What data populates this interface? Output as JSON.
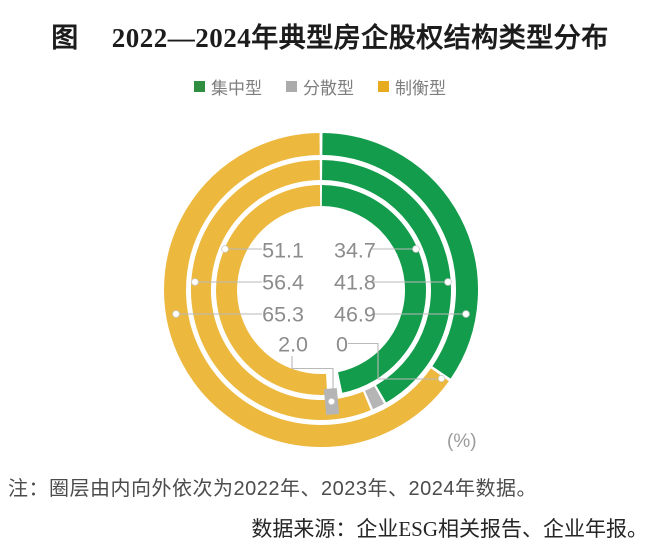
{
  "title": {
    "prefix": "图",
    "text": "2022—2024年典型房企股权结构类型分布"
  },
  "legend": [
    {
      "label": "集中型",
      "color": "#2f8e3f"
    },
    {
      "label": "分散型",
      "color": "#ababab"
    },
    {
      "label": "制衡型",
      "color": "#e6ab1f"
    }
  ],
  "chart_data": {
    "type": "donut",
    "title": "2022—2024年典型房企股权结构类型分布",
    "unit_label": "(%)",
    "legend_position": "top",
    "categories": [
      "集中型",
      "分散型",
      "制衡型"
    ],
    "colors": {
      "集中型": "#149c4d",
      "分散型": "#b5b5b5",
      "制衡型": "#ecb83e"
    },
    "ring_order_note": "rings from inner to outer = 2022, 2023, 2024",
    "rings": [
      {
        "year": "2022",
        "position": "inner",
        "arc_pcts": {
          "集中型": 46.9,
          "分散型": 2.0,
          "制衡型": 51.1
        }
      },
      {
        "year": "2023",
        "position": "middle",
        "arc_pcts": {
          "集中型": 41.8,
          "分散型": 1.8,
          "制衡型": 56.4
        }
      },
      {
        "year": "2024",
        "position": "outer",
        "arc_pcts": {
          "集中型": 34.7,
          "分散型": 0,
          "制衡型": 65.3
        }
      }
    ],
    "label_rows": {
      "left": [
        "51.1",
        "56.4",
        "65.3",
        "2.0"
      ],
      "right": [
        "34.7",
        "41.8",
        "46.9",
        "0"
      ]
    }
  },
  "note": "注：圈层由内向外依次为2022年、2023年、2024年数据。",
  "source": "数据来源：企业ESG相关报告、企业年报。"
}
